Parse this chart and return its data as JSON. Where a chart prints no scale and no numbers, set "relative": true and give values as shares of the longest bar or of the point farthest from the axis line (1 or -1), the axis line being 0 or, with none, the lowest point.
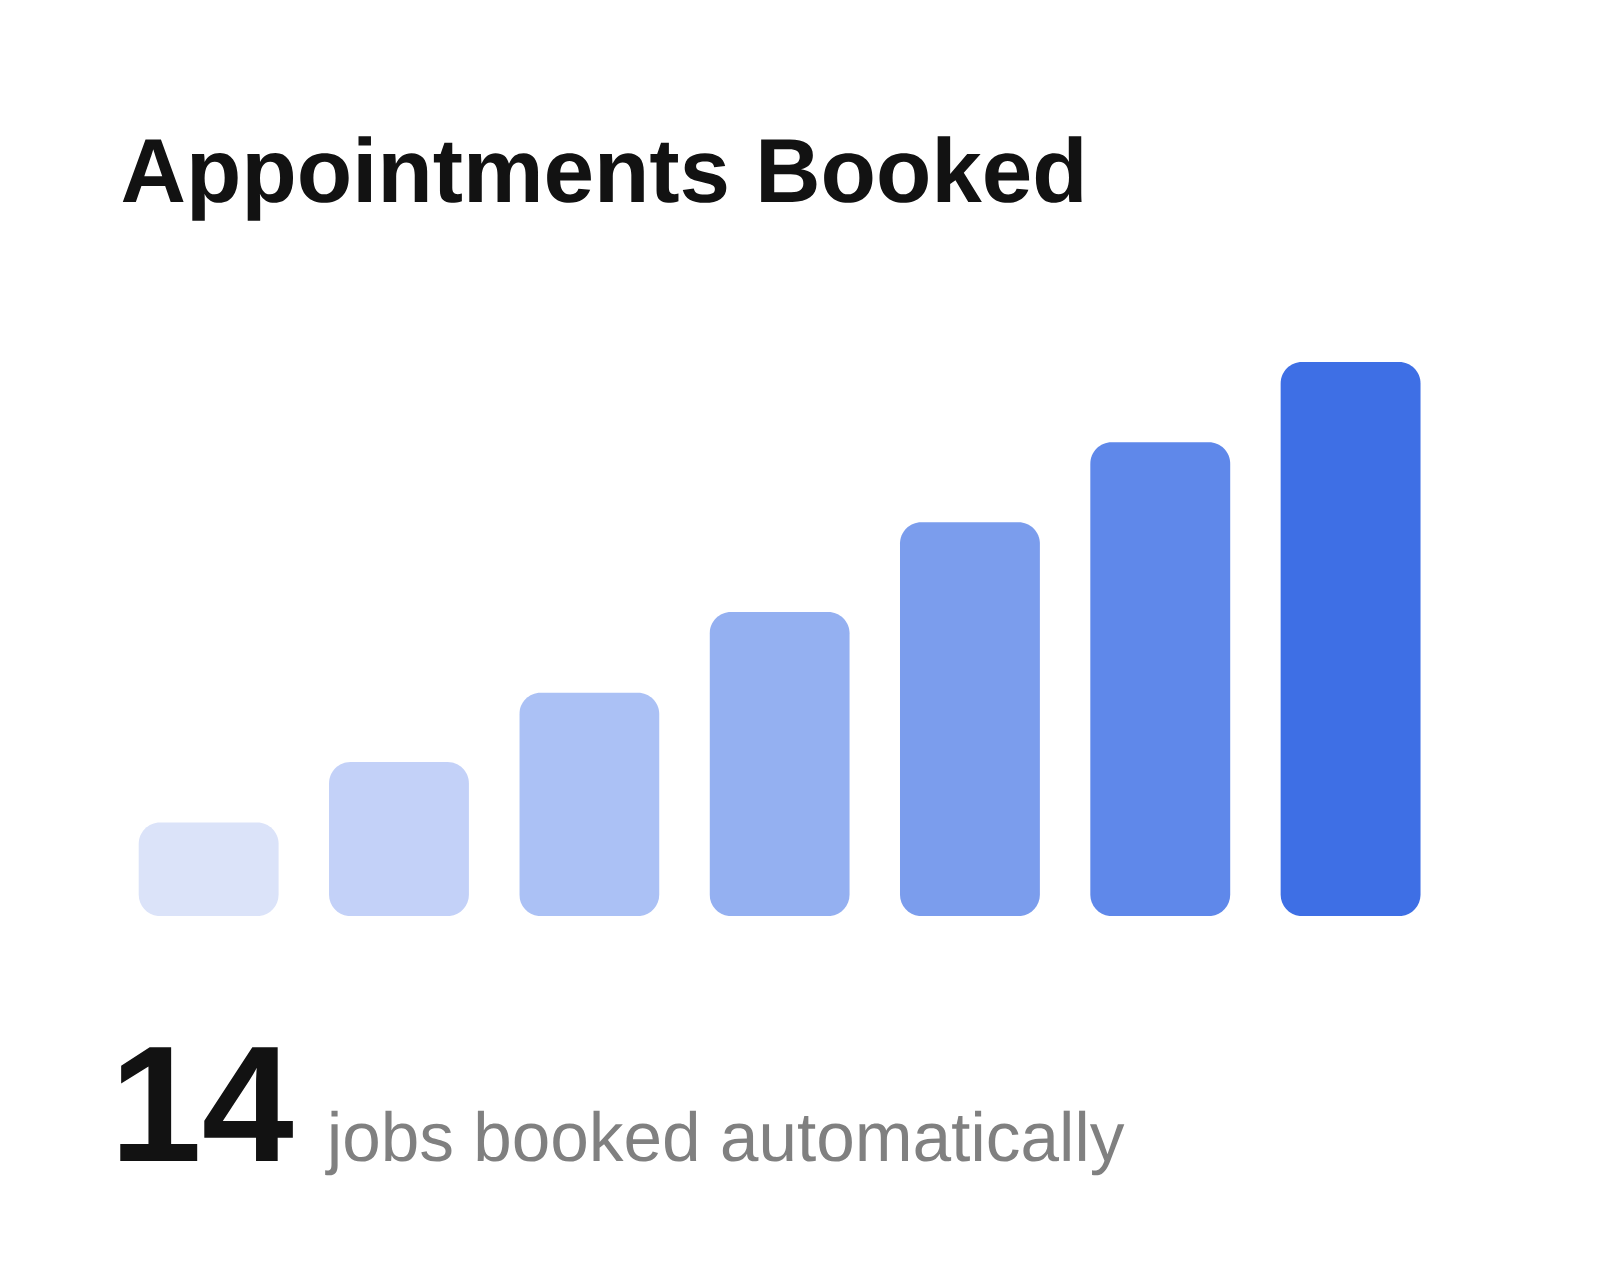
{
  "chart_data": {
    "type": "bar",
    "title": "Appointments Booked",
    "relative": true,
    "categories": [
      null,
      null,
      null,
      null,
      null,
      null,
      null
    ],
    "values": [
      0.169,
      0.278,
      0.403,
      0.549,
      0.711,
      0.855,
      1
    ],
    "colors": [
      "#dbe3f9",
      "#c3d1f8",
      "#abc1f5",
      "#94b0f1",
      "#7b9ded",
      "#5f88ea",
      "#3e6fe5"
    ],
    "annotations": [
      "14",
      "jobs booked automatically"
    ]
  }
}
